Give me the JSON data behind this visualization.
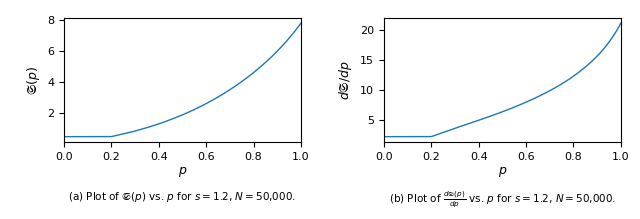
{
  "s": 1.2,
  "N": 50000,
  "figsize": [
    6.4,
    2.19
  ],
  "dpi": 100,
  "line_color": "#1f77b4",
  "line_width": 1.0,
  "xlabel": "$p$",
  "ylabel_left": "$\\mathfrak{S}(p)$",
  "ylabel_right": "$d\\mathfrak{S}/dp$",
  "caption_left": "(a) Plot of $\\mathfrak{S}(p)$ vs. $p$ for $s = 1.2$, $N = 50{,}000$.",
  "caption_right": "(b) Plot of $\\frac{d\\mathfrak{S}(p)}{dp}$ vs. $p$ for $s = 1.2$, $N = 50{,}000$.",
  "xlim": [
    0.0,
    1.0
  ],
  "caption_fontsize": 7.5,
  "axis_label_fontsize": 9,
  "tick_fontsize": 8
}
